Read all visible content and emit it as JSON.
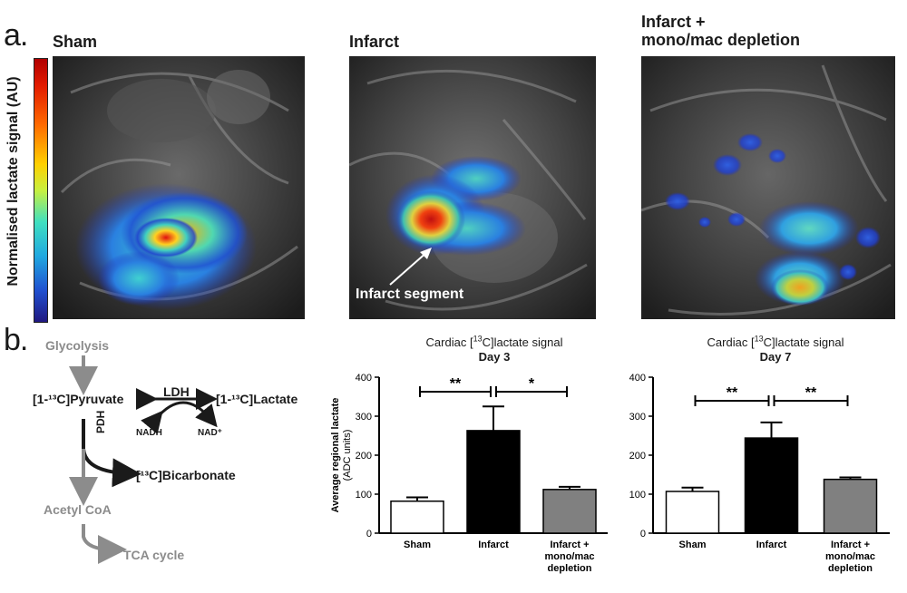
{
  "panel_a": {
    "letter": "a.",
    "colorbar_label": "Normalised lactate signal (AU)",
    "images": [
      {
        "title": "Sham"
      },
      {
        "title": "Infarct"
      },
      {
        "title": "Infarct +\nmono/mac depletion"
      }
    ],
    "annotation": "Infarct segment"
  },
  "panel_b": {
    "letter": "b.",
    "pathway": {
      "glycolysis": "Glycolysis",
      "pyruvate": "[1-¹³C]Pyruvate",
      "ldh": "LDH",
      "lactate": "[1-¹³C]Lactate",
      "nadh": "NADH",
      "nad": "NAD⁺",
      "pdh": "PDH",
      "bicarbonate": "[¹³C]Bicarbonate",
      "acetyl_coa": "Acetyl CoA",
      "tca": "TCA cycle"
    }
  },
  "chart_data": [
    {
      "type": "bar",
      "title": "Cardiac [13C]lactate signal",
      "subtitle": "Day 3",
      "ylabel": "Average regional lactate (ADC units)",
      "categories": [
        "Sham",
        "Infarct",
        "Infarct + mono/mac depletion"
      ],
      "values": [
        82,
        263,
        112
      ],
      "errors": [
        10,
        62,
        7
      ],
      "colors": [
        "#ffffff",
        "#000000",
        "#808080"
      ],
      "ylim": [
        0,
        400
      ],
      "yticks": [
        0,
        100,
        200,
        300,
        400
      ],
      "significance": [
        {
          "from": 0,
          "to": 1,
          "label": "**"
        },
        {
          "from": 1,
          "to": 2,
          "label": "*"
        }
      ]
    },
    {
      "type": "bar",
      "title": "Cardiac [13C]lactate signal",
      "subtitle": "Day 7",
      "ylabel": "",
      "categories": [
        "Sham",
        "Infarct",
        "Infarct + mono/mac depletion"
      ],
      "values": [
        107,
        244,
        138
      ],
      "errors": [
        10,
        40,
        5
      ],
      "colors": [
        "#ffffff",
        "#000000",
        "#808080"
      ],
      "ylim": [
        0,
        400
      ],
      "yticks": [
        0,
        100,
        200,
        300,
        400
      ],
      "significance": [
        {
          "from": 0,
          "to": 1,
          "label": "**"
        },
        {
          "from": 1,
          "to": 2,
          "label": "**"
        }
      ]
    }
  ]
}
